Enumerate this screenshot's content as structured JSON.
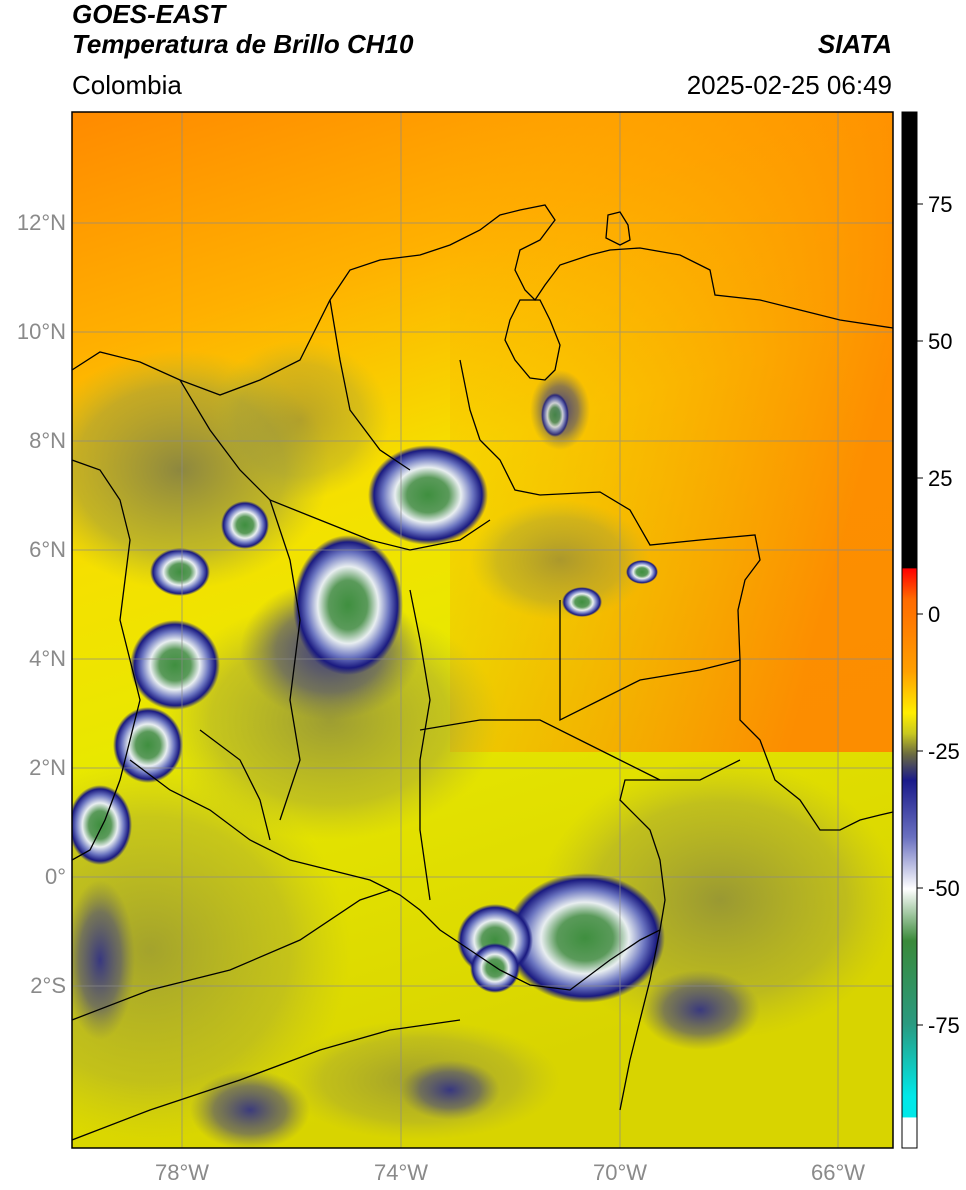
{
  "header": {
    "satellite": "GOES-EAST",
    "product": "Temperatura de Brillo CH10",
    "region": "Colombia",
    "organization": "SIATA",
    "datetime": "2025-02-25 06:49"
  },
  "map": {
    "lat_labels": [
      "12°N",
      "10°N",
      "8°N",
      "6°N",
      "4°N",
      "2°N",
      "0°",
      "2°S"
    ],
    "lon_labels": [
      "78°W",
      "74°W",
      "70°W",
      "66°W"
    ]
  },
  "colorbar": {
    "tick_labels": [
      "75",
      "50",
      "25",
      "0",
      "-25",
      "-50",
      "-75"
    ],
    "colors": {
      "top": "#000000",
      "warm": "#ff7a00",
      "yellow": "#f0f000",
      "olive": "#8a8a3a",
      "blue": "#1a1a8a",
      "white": "#ffffff",
      "green": "#3a8a3a",
      "cyan": "#00e0e0"
    }
  }
}
